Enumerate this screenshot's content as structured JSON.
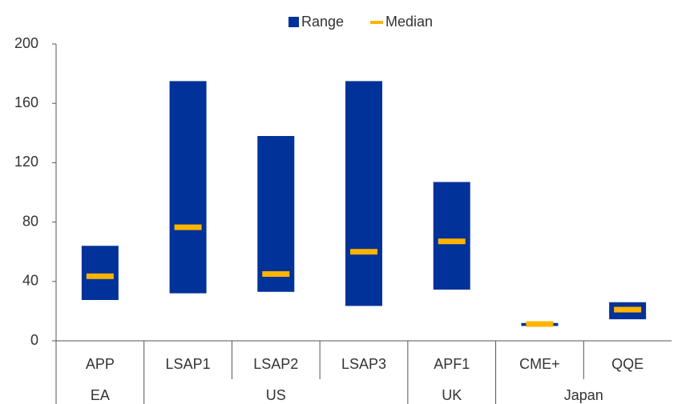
{
  "chart_data": {
    "type": "range",
    "categories": [
      "APP",
      "LSAP1",
      "LSAP2",
      "LSAP3",
      "APF1",
      "CME+",
      "QQE"
    ],
    "groups": [
      {
        "label": "EA",
        "count": 1
      },
      {
        "label": "US",
        "count": 3
      },
      {
        "label": "UK",
        "count": 1
      },
      {
        "label": "Japan",
        "count": 2
      }
    ],
    "series": [
      {
        "name": "Range",
        "color": "#003299",
        "low": [
          27.5,
          32,
          33,
          23.5,
          34.5,
          10,
          14.5
        ],
        "high": [
          64,
          175,
          138,
          175,
          107,
          12,
          26
        ]
      },
      {
        "name": "Median",
        "color": "#FFB400",
        "values": [
          43.5,
          76.5,
          45,
          60,
          67,
          11.3,
          21
        ]
      }
    ],
    "ylim": [
      0,
      200
    ],
    "yticks": [
      0,
      40,
      80,
      120,
      160,
      200
    ],
    "grid": false
  }
}
